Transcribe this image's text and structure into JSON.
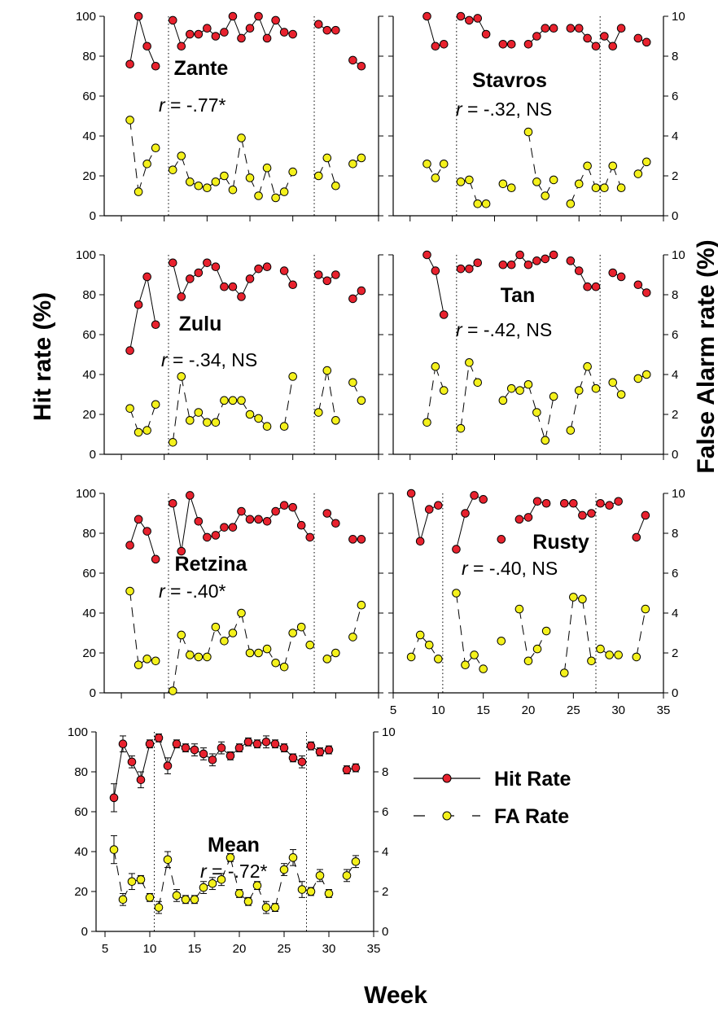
{
  "labels": {
    "ylabel_left": "Hit rate (%)",
    "ylabel_right": "False Alarm rate (%)",
    "xlabel": "Week"
  },
  "legend": {
    "hit": "Hit Rate",
    "fa": "FA Rate"
  },
  "colors": {
    "hit": "#e8222e",
    "fa": "#f4f11c",
    "line": "#000000"
  },
  "chart_data": [
    {
      "type": "line",
      "title": "Zante",
      "corr_r": "r",
      "corr_val": " = -.77*",
      "xlim": [
        3,
        35
      ],
      "ylim": [
        0,
        100
      ],
      "y2lim": [
        0,
        10
      ],
      "xticks": [],
      "yticks": [
        "0",
        "20",
        "40",
        "60",
        "80",
        "100"
      ],
      "y2ticks": [],
      "breaks": [
        10.5,
        27.5
      ],
      "series": [
        {
          "key": "hit",
          "x": [
            6,
            7,
            8,
            9,
            11,
            12,
            13,
            14,
            15,
            16,
            17,
            18,
            19,
            20,
            21,
            22,
            23,
            24,
            25,
            28,
            29,
            30,
            32,
            33
          ],
          "y": [
            76,
            100,
            85,
            75,
            98,
            85,
            91,
            91,
            94,
            90,
            92,
            100,
            89,
            94,
            100,
            89,
            98,
            92,
            91,
            96,
            93,
            93,
            78,
            75
          ]
        },
        {
          "key": "fa",
          "x": [
            6,
            7,
            8,
            9,
            11,
            12,
            13,
            14,
            15,
            16,
            17,
            18,
            19,
            20,
            21,
            22,
            23,
            24,
            25,
            28,
            29,
            30,
            32,
            33
          ],
          "y": [
            48,
            12,
            26,
            34,
            23,
            30,
            17,
            15,
            14,
            17,
            20,
            13,
            39,
            19,
            10,
            24,
            9,
            12,
            22,
            20,
            29,
            15,
            26,
            29
          ]
        }
      ]
    },
    {
      "type": "line",
      "title": "Stavros",
      "corr_r": "r",
      "corr_val": " = -.32, NS",
      "xlim": [
        3,
        35
      ],
      "ylim": [
        0,
        100
      ],
      "y2lim": [
        0,
        10
      ],
      "xticks": [],
      "yticks": [],
      "y2ticks": [
        "0",
        "2",
        "4",
        "6",
        "8",
        "10"
      ],
      "breaks": [
        10.5,
        27.5
      ],
      "series": [
        {
          "key": "hit",
          "x": [
            7,
            8,
            9,
            11,
            12,
            13,
            14,
            16,
            17,
            19,
            20,
            21,
            22,
            24,
            25,
            26,
            27,
            28,
            29,
            30,
            32,
            33
          ],
          "y": [
            100,
            85,
            86,
            100,
            98,
            99,
            91,
            86,
            86,
            86,
            90,
            94,
            94,
            94,
            94,
            89,
            85,
            90,
            85,
            94,
            89,
            87
          ]
        },
        {
          "key": "fa",
          "x": [
            7,
            8,
            9,
            11,
            12,
            13,
            14,
            16,
            17,
            19,
            20,
            21,
            22,
            24,
            25,
            26,
            27,
            28,
            29,
            30,
            32,
            33
          ],
          "y": [
            26,
            19,
            26,
            17,
            18,
            6,
            6,
            16,
            14,
            42,
            17,
            10,
            18,
            6,
            16,
            25,
            14,
            14,
            25,
            14,
            21,
            27
          ]
        }
      ]
    },
    {
      "type": "line",
      "title": "Zulu",
      "corr_r": "r",
      "corr_val": " = -.34, NS",
      "xlim": [
        3,
        35
      ],
      "ylim": [
        0,
        100
      ],
      "y2lim": [
        0,
        10
      ],
      "xticks": [],
      "yticks": [
        "0",
        "20",
        "40",
        "60",
        "80",
        "100"
      ],
      "y2ticks": [],
      "breaks": [
        10.5,
        27.5
      ],
      "series": [
        {
          "key": "hit",
          "x": [
            6,
            7,
            8,
            9,
            11,
            12,
            13,
            14,
            15,
            16,
            17,
            18,
            19,
            20,
            21,
            22,
            24,
            25,
            28,
            29,
            30,
            32,
            33
          ],
          "y": [
            52,
            75,
            89,
            65,
            96,
            79,
            88,
            91,
            96,
            94,
            84,
            84,
            79,
            88,
            93,
            94,
            92,
            85,
            90,
            87,
            90,
            78,
            82
          ]
        },
        {
          "key": "fa",
          "x": [
            6,
            7,
            8,
            9,
            11,
            12,
            13,
            14,
            15,
            16,
            17,
            18,
            19,
            20,
            21,
            22,
            24,
            25,
            28,
            29,
            30,
            32,
            33
          ],
          "y": [
            23,
            11,
            12,
            25,
            6,
            39,
            17,
            21,
            16,
            16,
            27,
            27,
            27,
            20,
            18,
            14,
            14,
            39,
            21,
            42,
            17,
            36,
            27
          ]
        }
      ]
    },
    {
      "type": "line",
      "title": "Tan",
      "corr_r": "r",
      "corr_val": " = -.42, NS",
      "xlim": [
        3,
        35
      ],
      "ylim": [
        0,
        100
      ],
      "y2lim": [
        0,
        10
      ],
      "xticks": [],
      "yticks": [],
      "y2ticks": [
        "0",
        "2",
        "4",
        "6",
        "8",
        "10"
      ],
      "breaks": [
        10.5,
        27.5
      ],
      "series": [
        {
          "key": "hit",
          "x": [
            7,
            8,
            9,
            11,
            12,
            13,
            16,
            17,
            18,
            19,
            20,
            21,
            22,
            24,
            25,
            26,
            27,
            29,
            30,
            32,
            33
          ],
          "y": [
            100,
            92,
            70,
            93,
            93,
            96,
            95,
            95,
            100,
            95,
            97,
            98,
            100,
            97,
            92,
            84,
            84,
            91,
            89,
            85,
            81
          ]
        },
        {
          "key": "fa",
          "x": [
            7,
            8,
            9,
            11,
            12,
            13,
            16,
            17,
            18,
            19,
            20,
            21,
            22,
            24,
            25,
            26,
            27,
            29,
            30,
            32,
            33
          ],
          "y": [
            16,
            44,
            32,
            13,
            46,
            36,
            27,
            33,
            32,
            35,
            21,
            7,
            29,
            12,
            32,
            44,
            33,
            36,
            30,
            38,
            40
          ]
        }
      ]
    },
    {
      "type": "line",
      "title": "Retzina",
      "corr_r": "r",
      "corr_val": " = -.40*",
      "xlim": [
        3,
        35
      ],
      "ylim": [
        0,
        100
      ],
      "y2lim": [
        0,
        10
      ],
      "xticks": [],
      "yticks": [
        "0",
        "20",
        "40",
        "60",
        "80",
        "100"
      ],
      "y2ticks": [],
      "breaks": [
        10.5,
        27.5
      ],
      "series": [
        {
          "key": "hit",
          "x": [
            6,
            7,
            8,
            9,
            11,
            12,
            13,
            14,
            15,
            16,
            17,
            18,
            19,
            20,
            21,
            22,
            23,
            24,
            25,
            26,
            27,
            29,
            30,
            32,
            33
          ],
          "y": [
            74,
            87,
            81,
            67,
            95,
            71,
            99,
            86,
            78,
            79,
            83,
            83,
            91,
            87,
            87,
            86,
            91,
            94,
            93,
            84,
            78,
            90,
            85,
            77,
            77
          ]
        },
        {
          "key": "fa",
          "x": [
            6,
            7,
            8,
            9,
            11,
            12,
            13,
            14,
            15,
            16,
            17,
            18,
            19,
            20,
            21,
            22,
            23,
            24,
            25,
            26,
            27,
            29,
            30,
            32,
            33
          ],
          "y": [
            51,
            14,
            17,
            16,
            1,
            29,
            19,
            18,
            18,
            33,
            26,
            30,
            40,
            20,
            20,
            22,
            15,
            13,
            30,
            33,
            24,
            17,
            20,
            28,
            44
          ]
        }
      ]
    },
    {
      "type": "line",
      "title": "Rusty",
      "corr_r": "r",
      "corr_val": " = -.40, NS",
      "xlim": [
        5,
        35
      ],
      "ylim": [
        0,
        100
      ],
      "y2lim": [
        0,
        10
      ],
      "xticks": [
        "5",
        "10",
        "15",
        "20",
        "25",
        "30",
        "35"
      ],
      "yticks": [],
      "y2ticks": [
        "0",
        "2",
        "4",
        "6",
        "8",
        "10"
      ],
      "breaks": [
        10.5,
        27.5
      ],
      "series": [
        {
          "key": "hit",
          "x": [
            7,
            8,
            9,
            10,
            12,
            13,
            14,
            15,
            17,
            19,
            20,
            21,
            22,
            24,
            25,
            26,
            27,
            28,
            29,
            30,
            32,
            33
          ],
          "y": [
            100,
            76,
            92,
            94,
            72,
            90,
            99,
            97,
            77,
            87,
            88,
            96,
            95,
            95,
            95,
            89,
            90,
            95,
            94,
            96,
            78,
            89
          ]
        },
        {
          "key": "fa",
          "x": [
            7,
            8,
            9,
            10,
            12,
            13,
            14,
            15,
            17,
            19,
            20,
            21,
            22,
            24,
            25,
            26,
            27,
            28,
            29,
            30,
            32,
            33
          ],
          "y": [
            18,
            29,
            24,
            17,
            50,
            14,
            19,
            12,
            26,
            42,
            16,
            22,
            31,
            10,
            48,
            47,
            16,
            22,
            19,
            19,
            18,
            42
          ]
        }
      ]
    },
    {
      "type": "line",
      "title": "Mean",
      "corr_r": "r",
      "corr_val": " = -.72*",
      "xlim": [
        4,
        35
      ],
      "ylim": [
        0,
        100
      ],
      "y2lim": [
        0,
        10
      ],
      "xticks": [
        "5",
        "10",
        "15",
        "20",
        "25",
        "30",
        "35"
      ],
      "yticks": [
        "0",
        "20",
        "40",
        "60",
        "80",
        "100"
      ],
      "y2ticks": [
        "0",
        "2",
        "4",
        "6",
        "8",
        "10"
      ],
      "breaks": [
        10.5,
        27.5
      ],
      "series": [
        {
          "key": "hit",
          "x": [
            6,
            7,
            8,
            9,
            10,
            11,
            12,
            13,
            14,
            15,
            16,
            17,
            18,
            19,
            20,
            21,
            22,
            23,
            24,
            25,
            26,
            27,
            28,
            29,
            30,
            32,
            33
          ],
          "y": [
            67,
            94,
            85,
            76,
            94,
            97,
            83,
            94,
            92,
            91,
            89,
            86,
            92,
            88,
            92,
            95,
            94,
            95,
            94,
            92,
            87,
            85,
            93,
            90,
            91,
            81,
            82
          ],
          "err": [
            7,
            4,
            3,
            4,
            2,
            2,
            4,
            2,
            2,
            3,
            3,
            3,
            3,
            2,
            2,
            2,
            2,
            3,
            2,
            2,
            2,
            3,
            2,
            2,
            2,
            2,
            2
          ]
        },
        {
          "key": "fa",
          "x": [
            6,
            7,
            8,
            9,
            10,
            11,
            12,
            13,
            14,
            15,
            16,
            17,
            18,
            19,
            20,
            21,
            22,
            23,
            24,
            25,
            26,
            27,
            28,
            29,
            30,
            32,
            33
          ],
          "y": [
            41,
            16,
            25,
            26,
            17,
            12,
            36,
            18,
            16,
            16,
            22,
            24,
            26,
            37,
            19,
            15,
            23,
            12,
            12,
            31,
            37,
            21,
            20,
            28,
            19,
            28,
            35
          ],
          "err": [
            7,
            3,
            4,
            2,
            2,
            3,
            4,
            3,
            2,
            2,
            3,
            3,
            3,
            2,
            2,
            2,
            2,
            3,
            2,
            3,
            4,
            4,
            2,
            3,
            2,
            3,
            3
          ]
        }
      ]
    }
  ]
}
